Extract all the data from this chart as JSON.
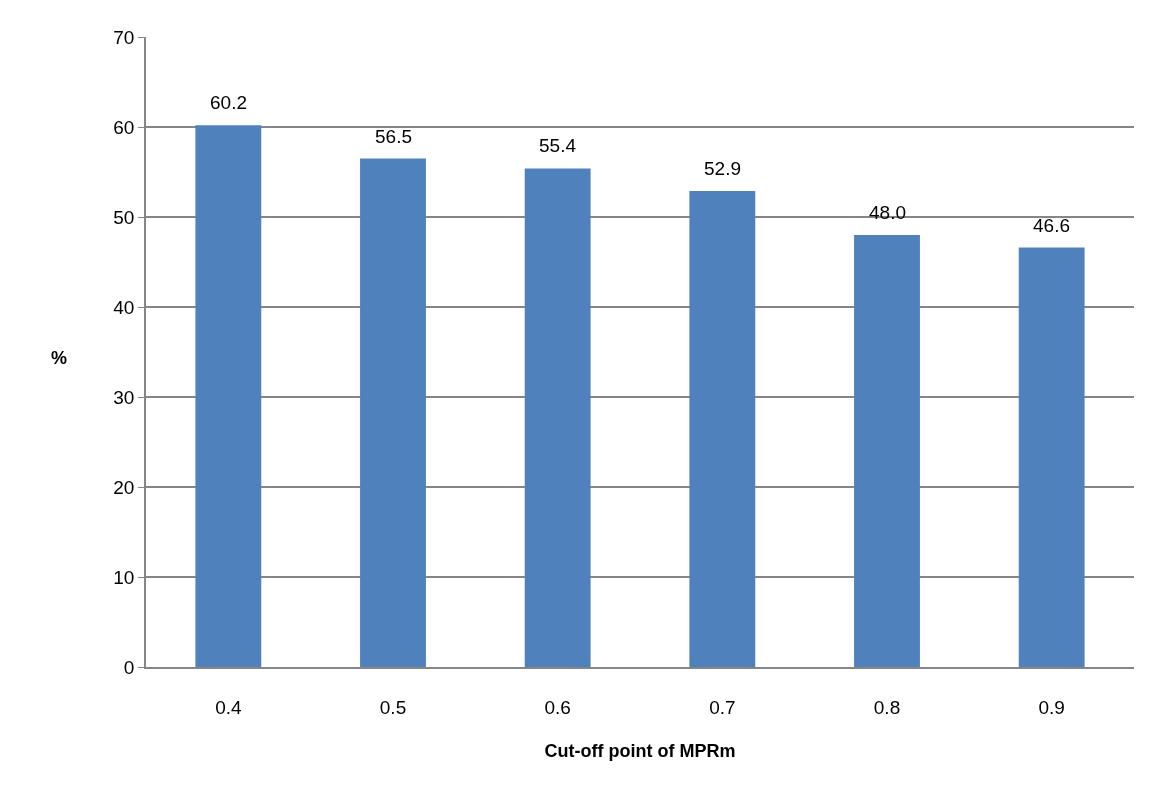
{
  "chart_data": {
    "type": "bar",
    "xlabel": "Cut-off point of MPRm",
    "ylabel": "%",
    "categories": [
      "0.4",
      "0.5",
      "0.6",
      "0.7",
      "0.8",
      "0.9"
    ],
    "values": [
      60.2,
      56.5,
      55.4,
      52.9,
      48.0,
      46.6
    ],
    "value_labels": [
      "60.2",
      "56.5",
      "55.4",
      "52.9",
      "48.0",
      "46.6"
    ],
    "color": "#4f81bd",
    "ylim": [
      0,
      70
    ],
    "yticks": [
      0,
      10,
      20,
      30,
      40,
      50,
      60,
      70
    ],
    "grid": "y"
  }
}
